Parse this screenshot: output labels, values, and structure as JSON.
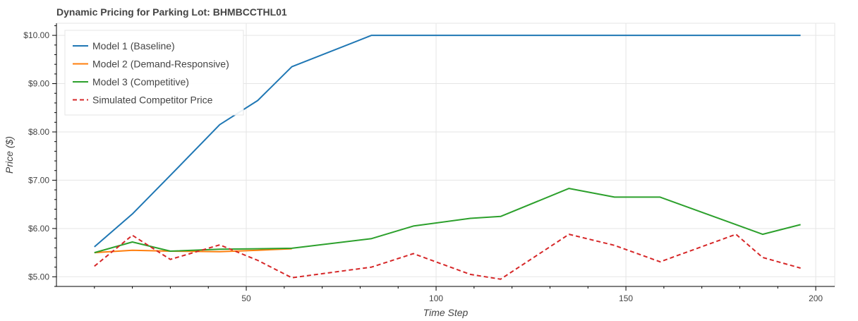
{
  "chart_data": {
    "type": "line",
    "title": "Dynamic Pricing for Parking Lot: BHMBCCTHL01",
    "xlabel": "Time Step",
    "ylabel": "Price ($)",
    "xlim": [
      0,
      205
    ],
    "ylim": [
      4.8,
      10.25
    ],
    "x_ticks": [
      50,
      100,
      150,
      200
    ],
    "x_tick_labels": [
      "50",
      "100",
      "150",
      "200"
    ],
    "y_ticks": [
      5,
      6,
      7,
      8,
      9,
      10
    ],
    "y_tick_labels": [
      "$5.00",
      "$6.00",
      "$7.00",
      "$8.00",
      "$9.00",
      "$10.00"
    ],
    "grid": true,
    "legend_position": "top-left",
    "series": [
      {
        "name": "Model 1 (Baseline)",
        "color": "#1f77b4",
        "dash": "solid",
        "x": [
          10,
          20,
          30,
          43,
          53,
          62,
          83,
          94,
          109,
          117,
          135,
          147,
          159,
          186,
          196
        ],
        "y": [
          5.62,
          6.3,
          7.1,
          8.15,
          8.65,
          9.35,
          10.0,
          10.0,
          10.0,
          10.0,
          10.0,
          10.0,
          10.0,
          10.0,
          10.0
        ]
      },
      {
        "name": "Model 2 (Demand-Responsive)",
        "color": "#ff7f0e",
        "dash": "solid",
        "x": [
          10,
          20,
          30,
          43,
          53,
          62
        ],
        "y": [
          5.5,
          5.55,
          5.53,
          5.52,
          5.55,
          5.58
        ]
      },
      {
        "name": "Model 3 (Competitive)",
        "color": "#2ca02c",
        "dash": "solid",
        "x": [
          10,
          20,
          30,
          43,
          53,
          62,
          83,
          94,
          109,
          117,
          135,
          147,
          159,
          186,
          196
        ],
        "y": [
          5.5,
          5.72,
          5.53,
          5.57,
          5.58,
          5.59,
          5.79,
          6.05,
          6.21,
          6.25,
          6.83,
          6.65,
          6.65,
          5.88,
          6.08
        ]
      },
      {
        "name": "Simulated Competitor Price",
        "color": "#d62728",
        "dash": "dashed",
        "x": [
          10,
          20,
          30,
          43,
          53,
          62,
          83,
          94,
          109,
          117,
          135,
          147,
          159,
          179,
          186,
          196
        ],
        "y": [
          5.22,
          5.86,
          5.36,
          5.66,
          5.34,
          4.98,
          5.2,
          5.48,
          5.05,
          4.95,
          5.88,
          5.65,
          5.31,
          5.88,
          5.4,
          5.18
        ]
      }
    ]
  }
}
